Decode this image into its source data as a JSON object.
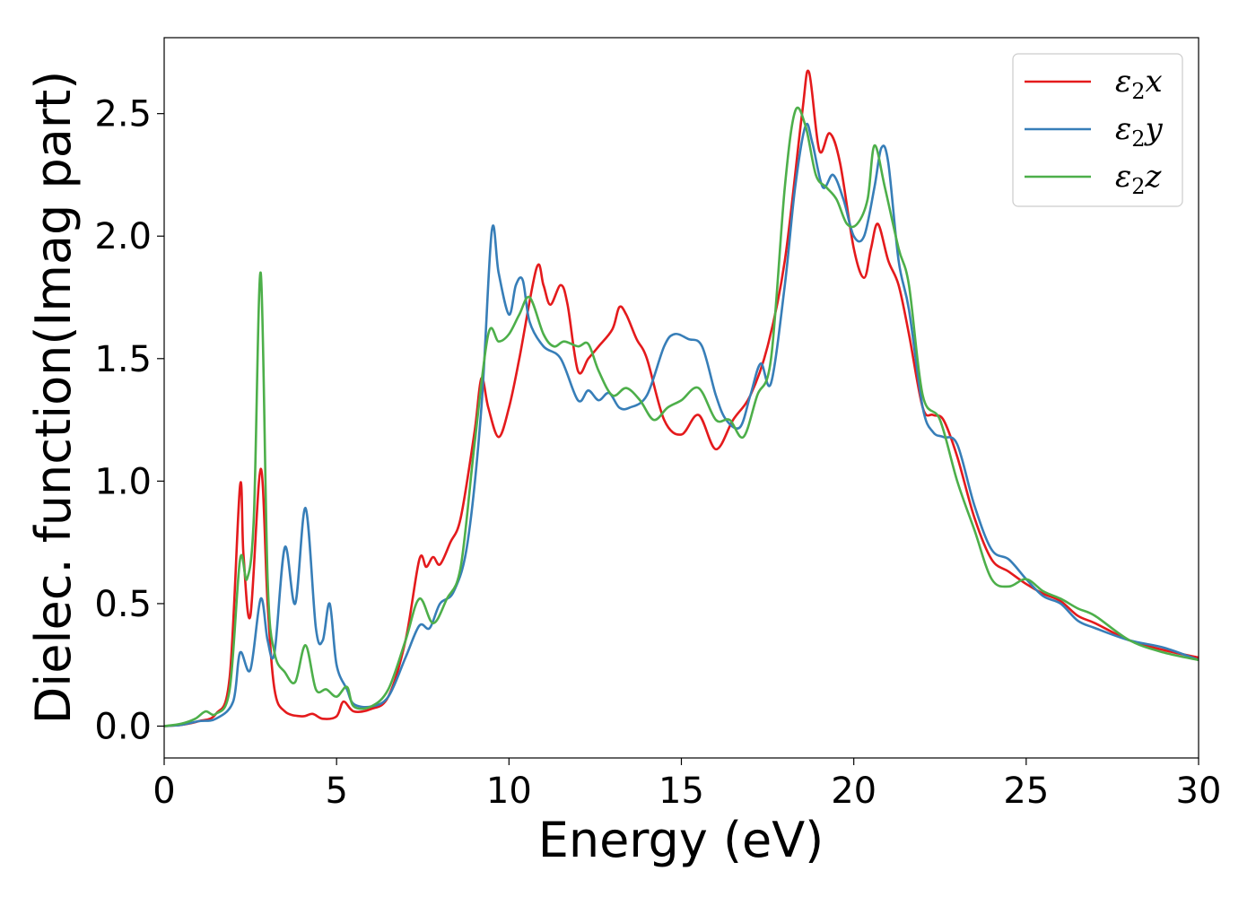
{
  "chart_data": {
    "type": "line",
    "xlabel": "Energy (eV)",
    "ylabel": "Dielec. function(Imag part)",
    "xlim": [
      0,
      30
    ],
    "ylim": [
      -0.13,
      2.81
    ],
    "xticks": [
      0,
      5,
      10,
      15,
      20,
      25,
      30
    ],
    "yticks": [
      0.0,
      0.5,
      1.0,
      1.5,
      2.0,
      2.5
    ],
    "xtick_labels": [
      "0",
      "5",
      "10",
      "15",
      "20",
      "25",
      "30"
    ],
    "ytick_labels": [
      "0.0",
      "0.5",
      "1.0",
      "1.5",
      "2.0",
      "2.5"
    ],
    "grid": false,
    "legend_position": "top-right",
    "series": [
      {
        "name": "ε2x",
        "legend_main": "ε",
        "legend_sub": "2",
        "legend_var": "x",
        "color": "#e41a1c",
        "points": [
          [
            0,
            0
          ],
          [
            0.5,
            0.005
          ],
          [
            1.0,
            0.02
          ],
          [
            1.5,
            0.05
          ],
          [
            1.9,
            0.2
          ],
          [
            2.2,
            0.98
          ],
          [
            2.3,
            0.7
          ],
          [
            2.5,
            0.45
          ],
          [
            2.8,
            1.05
          ],
          [
            3.0,
            0.5
          ],
          [
            3.2,
            0.15
          ],
          [
            3.5,
            0.06
          ],
          [
            4.0,
            0.04
          ],
          [
            4.3,
            0.05
          ],
          [
            4.6,
            0.03
          ],
          [
            5.0,
            0.04
          ],
          [
            5.2,
            0.1
          ],
          [
            5.5,
            0.06
          ],
          [
            6.0,
            0.07
          ],
          [
            6.5,
            0.12
          ],
          [
            7.0,
            0.35
          ],
          [
            7.4,
            0.68
          ],
          [
            7.6,
            0.65
          ],
          [
            7.8,
            0.69
          ],
          [
            8.0,
            0.66
          ],
          [
            8.3,
            0.75
          ],
          [
            8.6,
            0.85
          ],
          [
            9.0,
            1.2
          ],
          [
            9.2,
            1.42
          ],
          [
            9.4,
            1.3
          ],
          [
            9.7,
            1.18
          ],
          [
            10.0,
            1.3
          ],
          [
            10.3,
            1.5
          ],
          [
            10.8,
            1.87
          ],
          [
            11.0,
            1.8
          ],
          [
            11.2,
            1.72
          ],
          [
            11.5,
            1.8
          ],
          [
            11.7,
            1.72
          ],
          [
            12.0,
            1.45
          ],
          [
            12.3,
            1.5
          ],
          [
            12.6,
            1.55
          ],
          [
            13.0,
            1.62
          ],
          [
            13.2,
            1.71
          ],
          [
            13.4,
            1.68
          ],
          [
            13.7,
            1.58
          ],
          [
            14.0,
            1.5
          ],
          [
            14.5,
            1.25
          ],
          [
            15.0,
            1.19
          ],
          [
            15.5,
            1.27
          ],
          [
            16.0,
            1.13
          ],
          [
            16.5,
            1.25
          ],
          [
            17.0,
            1.35
          ],
          [
            17.5,
            1.55
          ],
          [
            18.0,
            1.9
          ],
          [
            18.5,
            2.5
          ],
          [
            18.7,
            2.67
          ],
          [
            19.0,
            2.35
          ],
          [
            19.3,
            2.42
          ],
          [
            19.6,
            2.3
          ],
          [
            20.0,
            1.95
          ],
          [
            20.3,
            1.83
          ],
          [
            20.5,
            1.95
          ],
          [
            20.7,
            2.05
          ],
          [
            21.0,
            1.9
          ],
          [
            21.3,
            1.8
          ],
          [
            21.6,
            1.6
          ],
          [
            22.0,
            1.3
          ],
          [
            22.3,
            1.27
          ],
          [
            22.6,
            1.25
          ],
          [
            23.0,
            1.1
          ],
          [
            23.5,
            0.85
          ],
          [
            24.0,
            0.68
          ],
          [
            24.5,
            0.63
          ],
          [
            25.0,
            0.58
          ],
          [
            25.5,
            0.54
          ],
          [
            26.0,
            0.51
          ],
          [
            26.5,
            0.45
          ],
          [
            27.0,
            0.42
          ],
          [
            28.0,
            0.35
          ],
          [
            29.0,
            0.31
          ],
          [
            30.0,
            0.28
          ]
        ]
      },
      {
        "name": "ε2y",
        "legend_main": "ε",
        "legend_sub": "2",
        "legend_var": "y",
        "color": "#377eb8",
        "points": [
          [
            0,
            0
          ],
          [
            0.5,
            0.005
          ],
          [
            1.0,
            0.02
          ],
          [
            1.5,
            0.03
          ],
          [
            2.0,
            0.1
          ],
          [
            2.2,
            0.3
          ],
          [
            2.5,
            0.23
          ],
          [
            2.8,
            0.52
          ],
          [
            3.0,
            0.35
          ],
          [
            3.2,
            0.3
          ],
          [
            3.5,
            0.73
          ],
          [
            3.8,
            0.5
          ],
          [
            4.1,
            0.89
          ],
          [
            4.4,
            0.4
          ],
          [
            4.6,
            0.35
          ],
          [
            4.8,
            0.5
          ],
          [
            5.0,
            0.25
          ],
          [
            5.3,
            0.15
          ],
          [
            5.5,
            0.09
          ],
          [
            6.0,
            0.08
          ],
          [
            6.5,
            0.12
          ],
          [
            7.0,
            0.28
          ],
          [
            7.4,
            0.41
          ],
          [
            7.7,
            0.4
          ],
          [
            8.0,
            0.5
          ],
          [
            8.4,
            0.55
          ],
          [
            8.8,
            0.75
          ],
          [
            9.2,
            1.3
          ],
          [
            9.5,
            2.02
          ],
          [
            9.7,
            1.85
          ],
          [
            10.0,
            1.68
          ],
          [
            10.2,
            1.8
          ],
          [
            10.4,
            1.82
          ],
          [
            10.6,
            1.65
          ],
          [
            11.0,
            1.55
          ],
          [
            11.5,
            1.5
          ],
          [
            12.0,
            1.33
          ],
          [
            12.3,
            1.37
          ],
          [
            12.6,
            1.33
          ],
          [
            12.9,
            1.36
          ],
          [
            13.2,
            1.3
          ],
          [
            13.5,
            1.3
          ],
          [
            14.0,
            1.35
          ],
          [
            14.5,
            1.55
          ],
          [
            14.8,
            1.6
          ],
          [
            15.2,
            1.58
          ],
          [
            15.6,
            1.55
          ],
          [
            16.0,
            1.35
          ],
          [
            16.3,
            1.25
          ],
          [
            16.7,
            1.22
          ],
          [
            17.0,
            1.35
          ],
          [
            17.3,
            1.48
          ],
          [
            17.6,
            1.4
          ],
          [
            18.0,
            1.8
          ],
          [
            18.3,
            2.2
          ],
          [
            18.6,
            2.45
          ],
          [
            18.8,
            2.38
          ],
          [
            19.1,
            2.2
          ],
          [
            19.4,
            2.25
          ],
          [
            19.7,
            2.15
          ],
          [
            20.0,
            2.0
          ],
          [
            20.3,
            2.0
          ],
          [
            20.6,
            2.2
          ],
          [
            20.8,
            2.36
          ],
          [
            21.0,
            2.3
          ],
          [
            21.3,
            1.9
          ],
          [
            21.6,
            1.7
          ],
          [
            22.0,
            1.3
          ],
          [
            22.3,
            1.2
          ],
          [
            22.6,
            1.18
          ],
          [
            23.0,
            1.15
          ],
          [
            23.5,
            0.9
          ],
          [
            24.0,
            0.72
          ],
          [
            24.5,
            0.68
          ],
          [
            25.0,
            0.6
          ],
          [
            25.5,
            0.53
          ],
          [
            26.0,
            0.5
          ],
          [
            26.5,
            0.43
          ],
          [
            27.0,
            0.4
          ],
          [
            28.0,
            0.35
          ],
          [
            29.0,
            0.32
          ],
          [
            30.0,
            0.27
          ]
        ]
      },
      {
        "name": "ε2z",
        "legend_main": "ε",
        "legend_sub": "2",
        "legend_var": "z",
        "color": "#4daf4a",
        "points": [
          [
            0,
            0
          ],
          [
            0.5,
            0.01
          ],
          [
            0.9,
            0.03
          ],
          [
            1.2,
            0.06
          ],
          [
            1.5,
            0.05
          ],
          [
            1.9,
            0.15
          ],
          [
            2.2,
            0.68
          ],
          [
            2.4,
            0.6
          ],
          [
            2.6,
            0.85
          ],
          [
            2.8,
            1.85
          ],
          [
            3.0,
            0.6
          ],
          [
            3.2,
            0.3
          ],
          [
            3.5,
            0.22
          ],
          [
            3.8,
            0.18
          ],
          [
            4.1,
            0.33
          ],
          [
            4.4,
            0.15
          ],
          [
            4.7,
            0.15
          ],
          [
            5.0,
            0.12
          ],
          [
            5.3,
            0.16
          ],
          [
            5.5,
            0.08
          ],
          [
            6.0,
            0.08
          ],
          [
            6.5,
            0.15
          ],
          [
            7.0,
            0.35
          ],
          [
            7.4,
            0.52
          ],
          [
            7.8,
            0.42
          ],
          [
            8.2,
            0.52
          ],
          [
            8.6,
            0.65
          ],
          [
            9.0,
            1.15
          ],
          [
            9.4,
            1.6
          ],
          [
            9.7,
            1.57
          ],
          [
            10.0,
            1.6
          ],
          [
            10.3,
            1.68
          ],
          [
            10.6,
            1.75
          ],
          [
            11.0,
            1.6
          ],
          [
            11.3,
            1.55
          ],
          [
            11.6,
            1.57
          ],
          [
            12.0,
            1.55
          ],
          [
            12.3,
            1.56
          ],
          [
            12.6,
            1.45
          ],
          [
            13.0,
            1.35
          ],
          [
            13.4,
            1.38
          ],
          [
            13.8,
            1.33
          ],
          [
            14.2,
            1.25
          ],
          [
            14.6,
            1.3
          ],
          [
            15.0,
            1.33
          ],
          [
            15.5,
            1.38
          ],
          [
            16.0,
            1.25
          ],
          [
            16.4,
            1.25
          ],
          [
            16.8,
            1.18
          ],
          [
            17.2,
            1.35
          ],
          [
            17.6,
            1.5
          ],
          [
            18.0,
            2.2
          ],
          [
            18.3,
            2.51
          ],
          [
            18.6,
            2.45
          ],
          [
            18.9,
            2.25
          ],
          [
            19.2,
            2.2
          ],
          [
            19.5,
            2.15
          ],
          [
            19.8,
            2.05
          ],
          [
            20.1,
            2.05
          ],
          [
            20.4,
            2.15
          ],
          [
            20.6,
            2.37
          ],
          [
            20.9,
            2.2
          ],
          [
            21.3,
            1.95
          ],
          [
            21.6,
            1.8
          ],
          [
            22.0,
            1.35
          ],
          [
            22.5,
            1.25
          ],
          [
            23.0,
            1.0
          ],
          [
            23.5,
            0.8
          ],
          [
            24.0,
            0.6
          ],
          [
            24.5,
            0.57
          ],
          [
            25.0,
            0.6
          ],
          [
            25.5,
            0.55
          ],
          [
            26.0,
            0.52
          ],
          [
            26.5,
            0.48
          ],
          [
            27.0,
            0.45
          ],
          [
            28.0,
            0.35
          ],
          [
            29.0,
            0.3
          ],
          [
            30.0,
            0.27
          ]
        ]
      }
    ]
  }
}
